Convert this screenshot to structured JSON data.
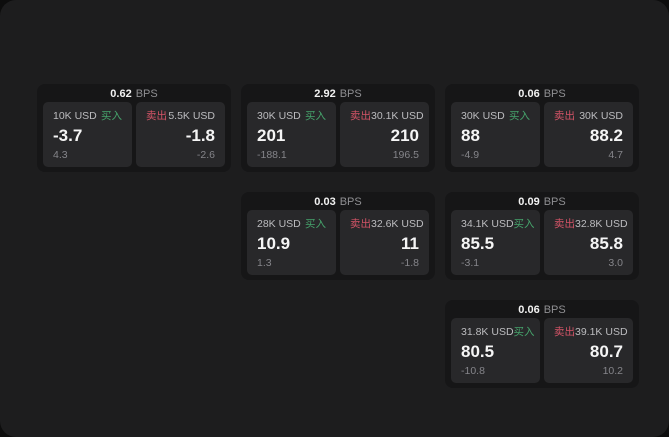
{
  "colors": {
    "green": "#46a46c",
    "red": "#d45467"
  },
  "labels": {
    "buy": "买入",
    "sell": "卖出",
    "bps": "BPS"
  },
  "cards": [
    {
      "row": 1,
      "col": 1,
      "bps": "0.62",
      "buy": {
        "amount": "10K USD",
        "big": "-3.7",
        "small": "4.3"
      },
      "sell": {
        "amount": "5.5K USD",
        "big": "-1.8",
        "small": "-2.6"
      }
    },
    {
      "row": 1,
      "col": 2,
      "bps": "2.92",
      "buy": {
        "amount": "30K USD",
        "big": "201",
        "small": "-188.1"
      },
      "sell": {
        "amount": "30.1K USD",
        "big": "210",
        "small": "196.5"
      }
    },
    {
      "row": 1,
      "col": 3,
      "bps": "0.06",
      "buy": {
        "amount": "30K USD",
        "big": "88",
        "small": "-4.9"
      },
      "sell": {
        "amount": "30K USD",
        "big": "88.2",
        "small": "4.7"
      }
    },
    {
      "row": 2,
      "col": 2,
      "bps": "0.03",
      "buy": {
        "amount": "28K USD",
        "big": "10.9",
        "small": "1.3"
      },
      "sell": {
        "amount": "32.6K USD",
        "big": "11",
        "small": "-1.8"
      }
    },
    {
      "row": 2,
      "col": 3,
      "bps": "0.09",
      "buy": {
        "amount": "34.1K USD",
        "big": "85.5",
        "small": "-3.1"
      },
      "sell": {
        "amount": "32.8K USD",
        "big": "85.8",
        "small": "3.0"
      }
    },
    {
      "row": 3,
      "col": 3,
      "bps": "0.06",
      "buy": {
        "amount": "31.8K USD",
        "big": "80.5",
        "small": "-10.8"
      },
      "sell": {
        "amount": "39.1K USD",
        "big": "80.7",
        "small": "10.2"
      }
    }
  ]
}
